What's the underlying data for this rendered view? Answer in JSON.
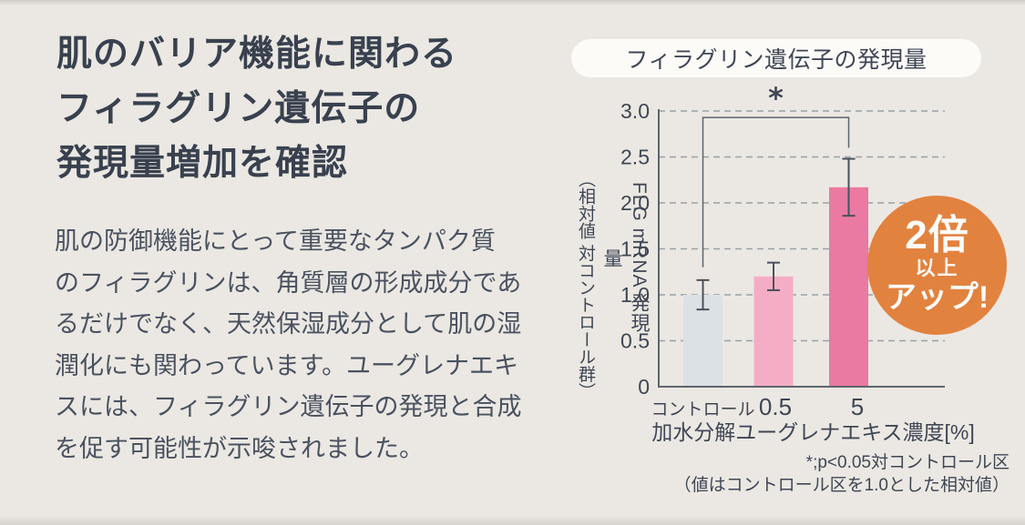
{
  "page": {
    "heading": "肌のバリア機能に関わる\nフィラグリン遺伝子の\n発現量増加を確認",
    "body_text": "肌の防御機能にとって重要なタンパク質\nのフィラグリンは、角質層の形成成分であ\nるだけでなく、天然保湿成分として肌の湿\n潤化にも関わっています。ユーグレナエキ\nスには、フィラグリン遺伝子の発現と合成\nを促す可能性が示唆されました。",
    "background_color": "#ebe8e3",
    "heading_color": "#39414f",
    "body_color": "#4a5260"
  },
  "badge": {
    "line1": "2倍",
    "line2": "以上",
    "line3": "アップ!",
    "color": "#e2823f",
    "text_color": "#ffffff"
  },
  "chart_data": {
    "type": "bar",
    "title": "フィラグリン遺伝子の発現量",
    "categories": [
      "コントロール",
      "0.5",
      "5"
    ],
    "values": [
      1.0,
      1.2,
      2.17
    ],
    "errors": [
      0.16,
      0.15,
      0.31
    ],
    "bar_colors": [
      "#dce1e6",
      "#f5adc5",
      "#ea7aa1"
    ],
    "ylabel_main": "FLG mRNA 発現量",
    "ylabel_sub": "（相対値 対コントロール群）",
    "xlabel": "加水分解ユーグレナエキス濃度[%]",
    "ylim": [
      0,
      3.0
    ],
    "ytick_step": 0.5,
    "yticks": [
      "0",
      "0.5",
      "1.0",
      "1.5",
      "2.0",
      "2.5",
      "3.0"
    ],
    "grid": "horizontal dashed",
    "legend": "none",
    "significance": {
      "label": "*",
      "from": "コントロール",
      "to": "5",
      "bracket_value": 2.93,
      "drop_left_value": 1.3,
      "drop_right_value": 2.6
    },
    "footnote1": "*;p<0.05対コントロール区",
    "footnote2": "（値はコントロール区を1.0とした相対値）"
  }
}
